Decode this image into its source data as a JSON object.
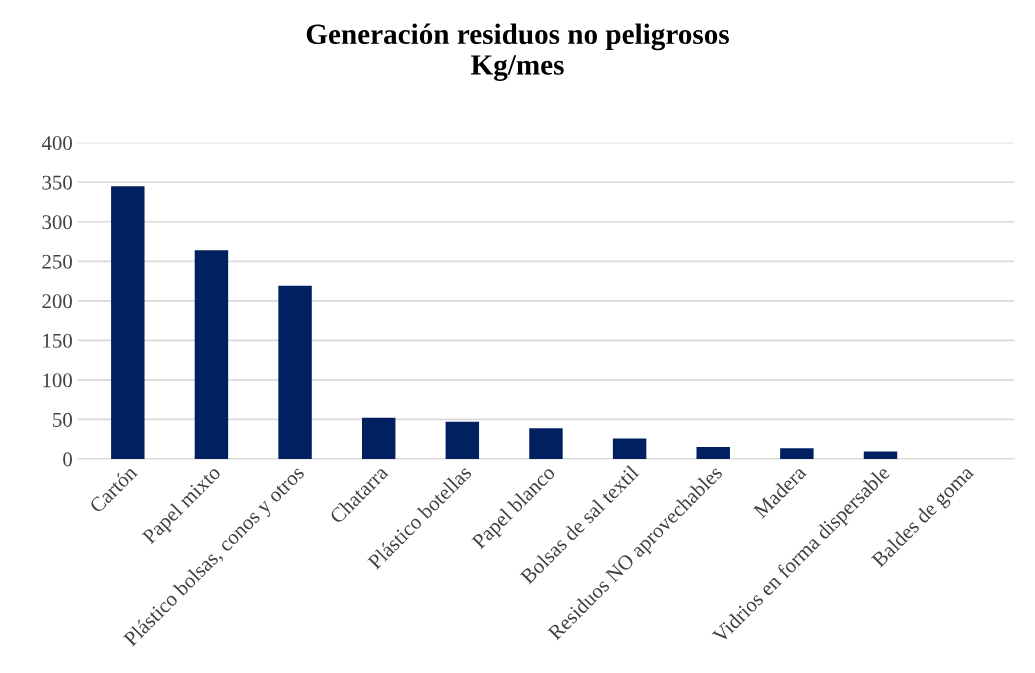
{
  "chart_data": {
    "type": "bar",
    "title": "Generación residuos no peligrosos\nKg/mes",
    "categories": [
      "Cartón",
      "Papel mixto",
      "Plástico bolsas, conos y otros",
      "Chatarra",
      "Plástico botellas",
      "Papel blanco",
      "Bolsas de sal textil",
      "Residuos NO aprovechables",
      "Madera",
      "Vidrios en forma dispersable",
      "Baldes de goma"
    ],
    "values": [
      345,
      264,
      219,
      52,
      47,
      39,
      26,
      15,
      13.5,
      9.5,
      0
    ],
    "color": "#002060",
    "ylim": [
      0,
      400
    ],
    "yticks": [
      0,
      50,
      100,
      150,
      200,
      250,
      300,
      350,
      400
    ],
    "grid": "y",
    "legend": false
  }
}
